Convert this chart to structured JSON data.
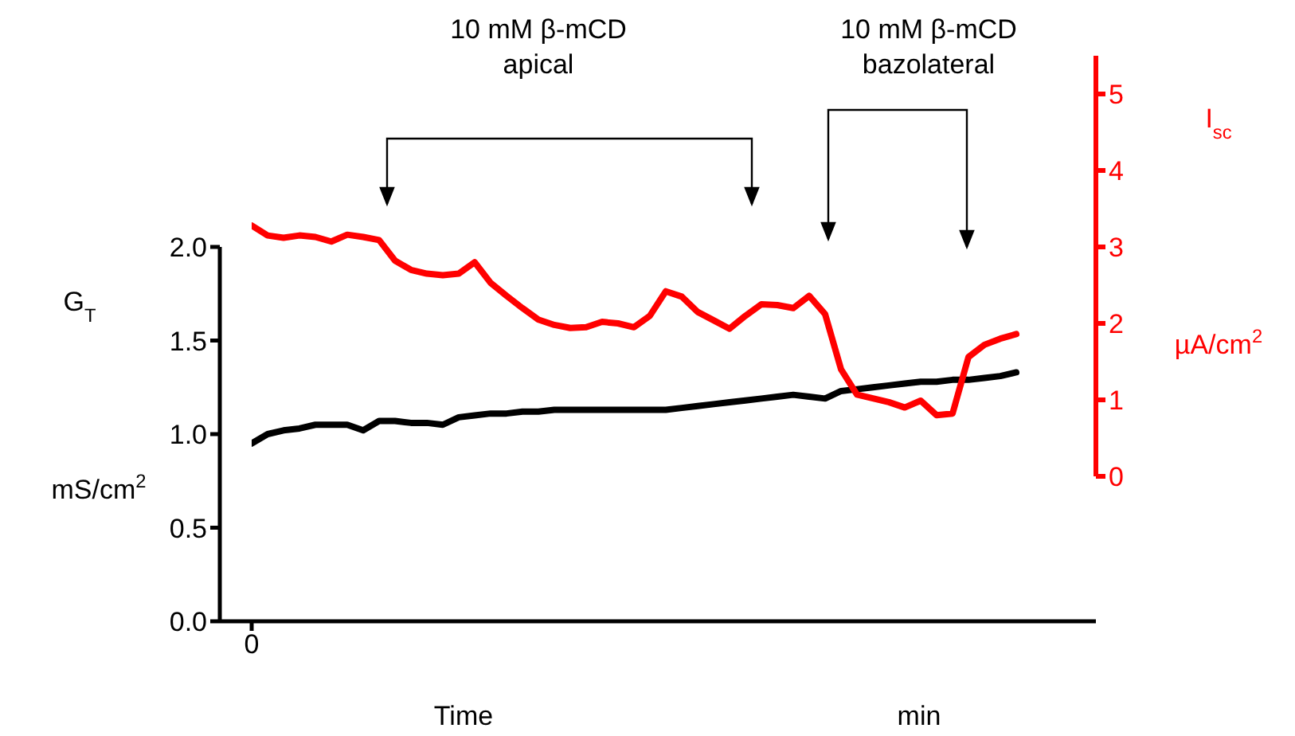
{
  "chart_data": {
    "type": "line",
    "xlabel": "Time\nmin",
    "ylabel": "G$_{T}$\nmS/cm$^{2}$",
    "y2label": "I$_{sc}$\nµA/cm$^{2}$",
    "annotations": [
      "10 mM β-mCD\napical",
      "10 mM β-mCD\nbazolateral"
    ],
    "categories": [
      "0",
      null,
      null,
      null,
      null,
      null,
      null,
      null,
      null,
      null,
      null,
      null,
      null,
      null,
      null,
      null,
      null,
      null,
      null,
      null,
      null,
      null,
      null,
      null,
      null,
      null,
      null,
      null,
      null,
      null,
      null,
      null,
      null,
      null,
      null,
      null,
      null,
      null,
      null,
      null,
      null,
      null,
      null,
      null,
      null,
      null,
      null,
      null,
      null,
      null,
      null,
      null
    ],
    "series": [
      {
        "color": "#000000",
        "values": [
          0.95,
          1.0,
          1.02,
          1.03,
          1.05,
          1.05,
          1.05,
          1.02,
          1.07,
          1.07,
          1.06,
          1.06,
          1.05,
          1.09,
          1.1,
          1.11,
          1.11,
          1.12,
          1.12,
          1.13,
          1.13,
          1.13,
          1.13,
          1.13,
          1.13,
          1.13,
          1.13,
          1.14,
          1.15,
          1.16,
          1.17,
          1.18,
          1.19,
          1.2,
          1.21,
          1.2,
          1.19,
          1.23,
          1.24,
          1.25,
          1.26,
          1.27,
          1.28,
          1.28,
          1.29,
          1.29,
          1.3,
          1.31,
          1.33,
          null,
          null,
          null
        ]
      },
      {
        "color": "#ff0000",
        "axis": "y2",
        "values": [
          3.28,
          3.15,
          3.12,
          3.15,
          3.13,
          3.07,
          3.16,
          3.13,
          3.09,
          2.82,
          2.7,
          2.65,
          2.63,
          2.65,
          2.8,
          2.53,
          2.36,
          2.2,
          2.05,
          1.98,
          1.94,
          1.95,
          2.02,
          2.0,
          1.95,
          2.1,
          2.42,
          2.35,
          2.15,
          2.04,
          1.93,
          2.1,
          2.25,
          2.24,
          2.2,
          2.36,
          2.12,
          1.4,
          1.07,
          1.02,
          0.97,
          0.9,
          0.99,
          0.8,
          0.82,
          1.56,
          1.72,
          1.8,
          1.86,
          null,
          null,
          null
        ]
      }
    ],
    "ylim": [
      0,
      2.0
    ],
    "yticks": [
      {
        "value": 0,
        "label": "0.0"
      },
      {
        "value": 0.5,
        "label": "0.5"
      },
      {
        "value": 1,
        "label": "1.0"
      },
      {
        "value": 1.5,
        "label": "1.5"
      },
      {
        "value": 2,
        "label": "2.0"
      }
    ],
    "y2lim": [
      0,
      5.5
    ],
    "y2ticks": [
      0,
      1,
      2,
      3,
      4,
      5
    ],
    "grid": false,
    "legend": false,
    "marker": "none",
    "line_style": "solid"
  }
}
